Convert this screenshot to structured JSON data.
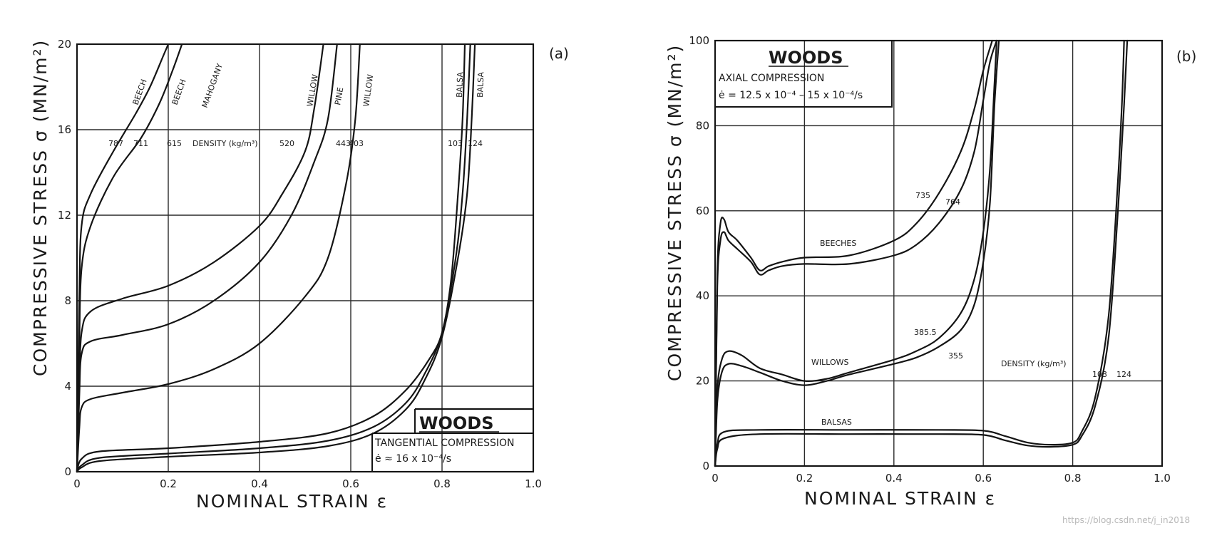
{
  "chart_data": [
    {
      "type": "line",
      "panel_label": "(a)",
      "title": "",
      "xlabel": "NOMINAL STRAIN ε",
      "ylabel": "COMPRESSIVE STRESS σ (MN/m²)",
      "xlim": [
        0,
        1.0
      ],
      "ylim": [
        0,
        20
      ],
      "x_ticks": [
        "0",
        "0.2",
        "0.4",
        "0.6",
        "0.8",
        "1.0"
      ],
      "y_ticks": [
        "0",
        "4",
        "8",
        "12",
        "16",
        "20"
      ],
      "grid": true,
      "legend_box": {
        "title": "WOODS",
        "line1": "TANGENTIAL COMPRESSION",
        "line2": "ė ≈ 16 x 10⁻⁴/s"
      },
      "density_label": "DENSITY (kg/m³)",
      "series": [
        {
          "name": "BEECH",
          "density": "787",
          "points": [
            [
              0,
              0
            ],
            [
              0.005,
              8
            ],
            [
              0.01,
              11.5
            ],
            [
              0.03,
              13
            ],
            [
              0.08,
              15
            ],
            [
              0.13,
              16.8
            ],
            [
              0.16,
              18
            ],
            [
              0.19,
              19.5
            ],
            [
              0.2,
              20
            ]
          ]
        },
        {
          "name": "BEECH",
          "density": "711",
          "points": [
            [
              0,
              0
            ],
            [
              0.005,
              6
            ],
            [
              0.01,
              9.5
            ],
            [
              0.03,
              11.5
            ],
            [
              0.08,
              13.8
            ],
            [
              0.14,
              15.6
            ],
            [
              0.18,
              17.2
            ],
            [
              0.21,
              18.8
            ],
            [
              0.23,
              20
            ]
          ]
        },
        {
          "name": "MAHOGANY",
          "density": "615",
          "points": [
            [
              0,
              0
            ],
            [
              0.005,
              4
            ],
            [
              0.01,
              6.5
            ],
            [
              0.03,
              7.5
            ],
            [
              0.1,
              8.1
            ],
            [
              0.2,
              8.7
            ],
            [
              0.3,
              9.8
            ],
            [
              0.4,
              11.5
            ],
            [
              0.45,
              13
            ],
            [
              0.5,
              15
            ],
            [
              0.52,
              17
            ],
            [
              0.54,
              20
            ]
          ]
        },
        {
          "name": "WILLOW",
          "density": "520",
          "points": [
            [
              0,
              0
            ],
            [
              0.005,
              3.5
            ],
            [
              0.01,
              5.5
            ],
            [
              0.03,
              6.1
            ],
            [
              0.1,
              6.4
            ],
            [
              0.2,
              6.9
            ],
            [
              0.3,
              8
            ],
            [
              0.4,
              9.8
            ],
            [
              0.47,
              12
            ],
            [
              0.52,
              14.5
            ],
            [
              0.55,
              16.5
            ],
            [
              0.57,
              20
            ]
          ]
        },
        {
          "name": "PINE",
          "density": "443",
          "points": [
            [
              0,
              0
            ],
            [
              0.005,
              2
            ],
            [
              0.01,
              3
            ],
            [
              0.03,
              3.4
            ],
            [
              0.1,
              3.7
            ],
            [
              0.2,
              4.1
            ],
            [
              0.3,
              4.8
            ],
            [
              0.4,
              6
            ],
            [
              0.5,
              8.2
            ],
            [
              0.55,
              10
            ],
            [
              0.59,
              13.5
            ],
            [
              0.61,
              16.5
            ],
            [
              0.62,
              20
            ]
          ]
        },
        {
          "name": "WILLOW",
          "density": "403",
          "points": [
            [
              0,
              0
            ],
            [
              0.01,
              0.6
            ],
            [
              0.05,
              0.95
            ],
            [
              0.2,
              1.1
            ],
            [
              0.4,
              1.4
            ],
            [
              0.55,
              1.8
            ],
            [
              0.65,
              2.6
            ],
            [
              0.72,
              3.8
            ],
            [
              0.77,
              5.2
            ],
            [
              0.8,
              6.5
            ],
            [
              0.82,
              9
            ],
            [
              0.835,
              13
            ],
            [
              0.845,
              16.5
            ],
            [
              0.85,
              20
            ]
          ]
        },
        {
          "name": "BALSA",
          "density": "103",
          "points": [
            [
              0,
              0
            ],
            [
              0.01,
              0.3
            ],
            [
              0.05,
              0.65
            ],
            [
              0.2,
              0.85
            ],
            [
              0.4,
              1.1
            ],
            [
              0.55,
              1.45
            ],
            [
              0.65,
              2.1
            ],
            [
              0.72,
              3.2
            ],
            [
              0.76,
              4.5
            ],
            [
              0.8,
              6.5
            ],
            [
              0.83,
              10
            ],
            [
              0.845,
              13
            ],
            [
              0.855,
              16.5
            ],
            [
              0.862,
              20
            ]
          ]
        },
        {
          "name": "BALSA",
          "density": "124",
          "points": [
            [
              0,
              0
            ],
            [
              0.01,
              0.2
            ],
            [
              0.05,
              0.5
            ],
            [
              0.2,
              0.7
            ],
            [
              0.4,
              0.9
            ],
            [
              0.55,
              1.2
            ],
            [
              0.65,
              1.8
            ],
            [
              0.72,
              2.9
            ],
            [
              0.76,
              4.2
            ],
            [
              0.8,
              6.3
            ],
            [
              0.835,
              10
            ],
            [
              0.855,
              13
            ],
            [
              0.865,
              16.5
            ],
            [
              0.872,
              20
            ]
          ]
        }
      ],
      "curve_labels": [
        "BEECH",
        "BEECH",
        "MAHOGANY",
        "WILLOW",
        "PINE",
        "WILLOW",
        "BALSA",
        "BALSA"
      ],
      "density_values": [
        "787",
        "711",
        "615",
        "520",
        "443",
        "403",
        "103",
        "124"
      ]
    },
    {
      "type": "line",
      "panel_label": "(b)",
      "title": "",
      "xlabel": "NOMINAL STRAIN ε",
      "ylabel": "COMPRESSIVE STRESS σ (MN/m²)",
      "xlim": [
        0,
        1.0
      ],
      "ylim": [
        0,
        100
      ],
      "x_ticks": [
        "0",
        "0.2",
        "0.4",
        "0.6",
        "0.8",
        "1.0"
      ],
      "y_ticks": [
        "0",
        "20",
        "40",
        "60",
        "80",
        "100"
      ],
      "grid": true,
      "legend_box": {
        "title": "WOODS",
        "line1": "AXIAL COMPRESSION",
        "line2": "ė = 12.5 x 10⁻⁴ – 15 x 10⁻⁴/s"
      },
      "group_labels": [
        "BEECHES",
        "WILLOWS",
        "BALSAS"
      ],
      "density_label": "DENSITY (kg/m³)",
      "series": [
        {
          "name": "BEECHES",
          "density": "735",
          "points": [
            [
              0,
              0
            ],
            [
              0.005,
              45
            ],
            [
              0.012,
              57
            ],
            [
              0.02,
              58
            ],
            [
              0.03,
              55
            ],
            [
              0.05,
              53
            ],
            [
              0.08,
              49
            ],
            [
              0.1,
              46
            ],
            [
              0.12,
              47
            ],
            [
              0.15,
              48
            ],
            [
              0.2,
              49
            ],
            [
              0.3,
              49.5
            ],
            [
              0.4,
              53
            ],
            [
              0.45,
              57
            ],
            [
              0.5,
              64
            ],
            [
              0.55,
              74
            ],
            [
              0.58,
              84
            ],
            [
              0.6,
              93
            ],
            [
              0.62,
              100
            ]
          ]
        },
        {
          "name": "BEECHES",
          "density": "764",
          "points": [
            [
              0,
              0
            ],
            [
              0.005,
              42
            ],
            [
              0.012,
              53
            ],
            [
              0.02,
              55
            ],
            [
              0.03,
              53
            ],
            [
              0.05,
              51
            ],
            [
              0.08,
              48
            ],
            [
              0.1,
              45
            ],
            [
              0.12,
              46
            ],
            [
              0.15,
              47
            ],
            [
              0.2,
              47.5
            ],
            [
              0.3,
              47.5
            ],
            [
              0.4,
              49.5
            ],
            [
              0.45,
              52
            ],
            [
              0.5,
              57
            ],
            [
              0.55,
              65
            ],
            [
              0.58,
              74
            ],
            [
              0.6,
              86
            ],
            [
              0.615,
              95
            ],
            [
              0.63,
              100
            ]
          ]
        },
        {
          "name": "WILLOWS",
          "density": "385.5",
          "points": [
            [
              0,
              0
            ],
            [
              0.005,
              18
            ],
            [
              0.015,
              25
            ],
            [
              0.03,
              27
            ],
            [
              0.06,
              26
            ],
            [
              0.1,
              23
            ],
            [
              0.15,
              21.5
            ],
            [
              0.2,
              20
            ],
            [
              0.25,
              20.5
            ],
            [
              0.3,
              22
            ],
            [
              0.4,
              25
            ],
            [
              0.45,
              27
            ],
            [
              0.5,
              30
            ],
            [
              0.55,
              36
            ],
            [
              0.58,
              44
            ],
            [
              0.6,
              55
            ],
            [
              0.615,
              70
            ],
            [
              0.625,
              90
            ],
            [
              0.63,
              100
            ]
          ]
        },
        {
          "name": "WILLOWS",
          "density": "355",
          "points": [
            [
              0,
              0
            ],
            [
              0.005,
              15
            ],
            [
              0.015,
              22
            ],
            [
              0.03,
              24
            ],
            [
              0.06,
              23.5
            ],
            [
              0.1,
              22
            ],
            [
              0.15,
              20
            ],
            [
              0.2,
              19
            ],
            [
              0.25,
              20
            ],
            [
              0.3,
              21.5
            ],
            [
              0.4,
              24
            ],
            [
              0.45,
              25.5
            ],
            [
              0.5,
              28
            ],
            [
              0.55,
              32
            ],
            [
              0.58,
              38
            ],
            [
              0.6,
              48
            ],
            [
              0.615,
              62
            ],
            [
              0.625,
              85
            ],
            [
              0.635,
              100
            ]
          ]
        },
        {
          "name": "BALSAS",
          "density": "103",
          "points": [
            [
              0,
              0
            ],
            [
              0.005,
              5
            ],
            [
              0.02,
              8
            ],
            [
              0.1,
              8.5
            ],
            [
              0.3,
              8.5
            ],
            [
              0.5,
              8.5
            ],
            [
              0.6,
              8.3
            ],
            [
              0.65,
              7
            ],
            [
              0.7,
              5.5
            ],
            [
              0.75,
              5
            ],
            [
              0.8,
              5.5
            ],
            [
              0.82,
              8
            ],
            [
              0.85,
              16
            ],
            [
              0.88,
              35
            ],
            [
              0.9,
              65
            ],
            [
              0.91,
              85
            ],
            [
              0.915,
              100
            ]
          ]
        },
        {
          "name": "BALSAS",
          "density": "124",
          "points": [
            [
              0,
              0
            ],
            [
              0.005,
              4
            ],
            [
              0.02,
              6.5
            ],
            [
              0.1,
              7.5
            ],
            [
              0.3,
              7.5
            ],
            [
              0.5,
              7.5
            ],
            [
              0.6,
              7.3
            ],
            [
              0.65,
              6
            ],
            [
              0.7,
              4.8
            ],
            [
              0.75,
              4.5
            ],
            [
              0.8,
              5
            ],
            [
              0.82,
              7
            ],
            [
              0.85,
              14
            ],
            [
              0.88,
              30
            ],
            [
              0.9,
              58
            ],
            [
              0.915,
              85
            ],
            [
              0.922,
              100
            ]
          ]
        }
      ],
      "density_values": [
        "735",
        "764",
        "385.5",
        "355",
        "103",
        "124"
      ]
    }
  ],
  "watermark": "https://blog.csdn.net/j_in2018"
}
